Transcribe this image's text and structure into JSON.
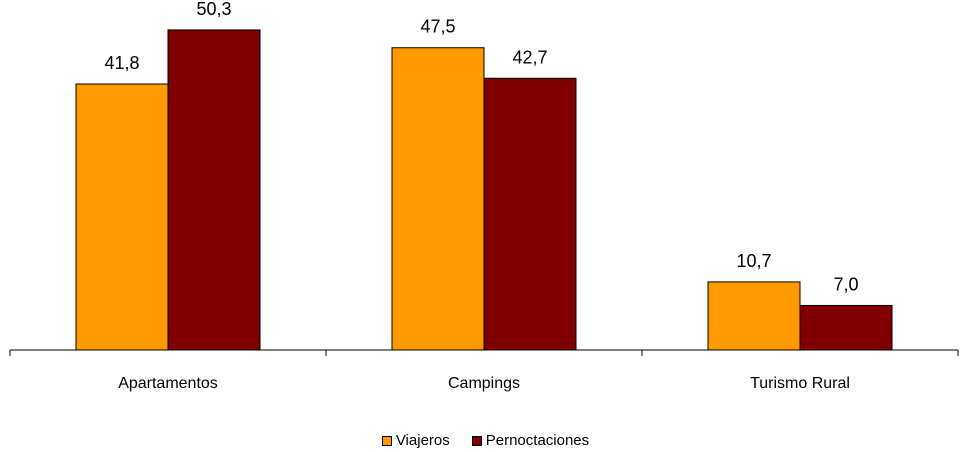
{
  "chart_data": {
    "type": "bar",
    "title": "",
    "xlabel": "",
    "ylabel": "",
    "ylim": [
      0,
      55
    ],
    "grid": false,
    "legend_position": "bottom",
    "categories": [
      "Apartamentos",
      "Campings",
      "Turismo Rural"
    ],
    "series": [
      {
        "name": "Viajeros",
        "color": "#FF9900",
        "values": [
          41.8,
          47.5,
          10.7
        ],
        "labels": [
          "41,8",
          "47,5",
          "10,7"
        ]
      },
      {
        "name": "Pernoctaciones",
        "color": "#800000",
        "values": [
          50.3,
          42.7,
          7.0
        ],
        "labels": [
          "50,3",
          "42,7",
          "7,0"
        ]
      }
    ]
  }
}
